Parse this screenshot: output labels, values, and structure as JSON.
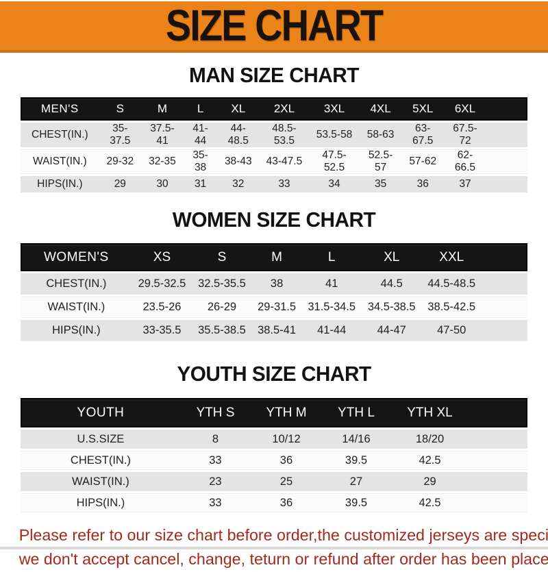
{
  "page": {
    "banner_title": "SIZE CHART",
    "colors": {
      "banner_orange": "#EC8318",
      "banner_border": "#C96E12",
      "header_black": "#151515",
      "row_gray": "#e4e4e4",
      "footer_red": "#A3281E"
    }
  },
  "sections": [
    {
      "id": "men",
      "title": "MAN SIZE CHART",
      "corner_label": "MEN'S",
      "columns": [
        "S",
        "M",
        "L",
        "XL",
        "2XL",
        "3XL",
        "4XL",
        "5XL",
        "6XL"
      ],
      "rows": [
        {
          "label": "CHEST(IN.)",
          "values": [
            "35-37.5",
            "37.5-41",
            "41-44",
            "44-48.5",
            "48.5-53.5",
            "53.5-58",
            "58-63",
            "63-67.5",
            "67.5-72"
          ]
        },
        {
          "label": "WAIST(IN.)",
          "values": [
            "29-32",
            "32-35",
            "35-38",
            "38-43",
            "43-47.5",
            "47.5-52.5",
            "52.5-57",
            "57-62",
            "62-66.5"
          ]
        },
        {
          "label": "HIPS(IN.)",
          "values": [
            "29",
            "30",
            "31",
            "32",
            "33",
            "34",
            "35",
            "36",
            "37"
          ]
        }
      ]
    },
    {
      "id": "women",
      "title": "WOMEN SIZE CHART",
      "corner_label": "WOMEN'S",
      "columns": [
        "XS",
        "S",
        "M",
        "L",
        "XL",
        "XXL"
      ],
      "rows": [
        {
          "label": "CHEST(IN.)",
          "values": [
            "29.5-32.5",
            "32.5-35.5",
            "38",
            "41",
            "44.5",
            "44.5-48.5"
          ]
        },
        {
          "label": "WAIST(IN.)",
          "values": [
            "23.5-26",
            "26-29",
            "29-31.5",
            "31.5-34.5",
            "34.5-38.5",
            "38.5-42.5"
          ]
        },
        {
          "label": "HIPS(IN.)",
          "values": [
            "33-35.5",
            "35.5-38.5",
            "38.5-41",
            "41-44",
            "44-47",
            "47-50"
          ]
        }
      ]
    },
    {
      "id": "youth",
      "title": "YOUTH SIZE CHART",
      "corner_label": "YOUTH",
      "columns": [
        "YTH S",
        "YTH M",
        "YTH L",
        "YTH XL"
      ],
      "rows": [
        {
          "label": "U.S.SIZE",
          "values": [
            "8",
            "10/12",
            "14/16",
            "18/20"
          ]
        },
        {
          "label": "CHEST(IN.)",
          "values": [
            "33",
            "36",
            "39.5",
            "42.5"
          ]
        },
        {
          "label": "WAIST(IN.)",
          "values": [
            "23",
            "25",
            "27",
            "29"
          ]
        },
        {
          "label": "HIPS(IN.)",
          "values": [
            "33",
            "36",
            "39.5",
            "42.5"
          ]
        }
      ]
    }
  ],
  "footer": {
    "line1": "Please refer to our size chart before order,the customized jerseys are special products,",
    "line2": "we don't accept cancel, change, teturn or refund after order has been placed!"
  }
}
